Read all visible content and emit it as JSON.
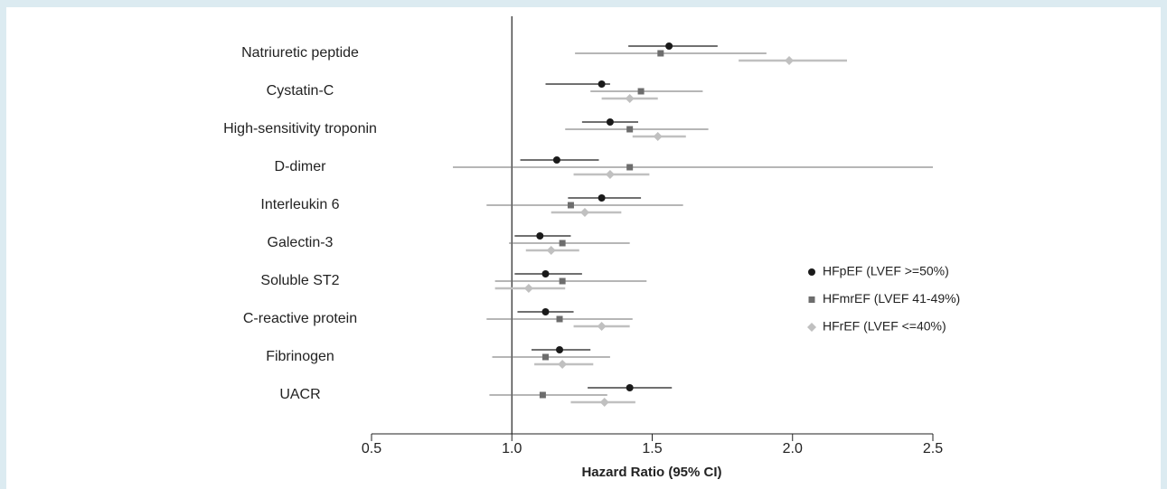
{
  "chart_data": {
    "type": "forest",
    "xlabel": "Hazard Ratio (95% CI)",
    "categories": [
      "Natriuretic peptide",
      "Cystatin-C",
      "High-sensitivity troponin",
      "D-dimer",
      "Interleukin 6",
      "Galectin-3",
      "Soluble ST2",
      "C-reactive protein",
      "Fibrinogen",
      "UACR"
    ],
    "series": [
      {
        "name": "HFpEF (LVEF >=50%)",
        "color": "#1a1a1a",
        "marker": "circle",
        "values": [
          1.56,
          1.32,
          1.35,
          1.16,
          1.32,
          1.1,
          1.12,
          1.12,
          1.17,
          1.42
        ],
        "lower": [
          1.415,
          1.12,
          1.25,
          1.03,
          1.2,
          1.01,
          1.01,
          1.02,
          1.07,
          1.27
        ],
        "upper": [
          1.733,
          1.35,
          1.45,
          1.31,
          1.46,
          1.21,
          1.25,
          1.22,
          1.28,
          1.57
        ]
      },
      {
        "name": "HFmrEF (LVEF 41-49%)",
        "color": "#6d6d6d",
        "marker": "square",
        "values": [
          1.53,
          1.46,
          1.42,
          1.42,
          1.21,
          1.18,
          1.18,
          1.17,
          1.12,
          1.11
        ],
        "lower": [
          1.225,
          1.28,
          1.19,
          0.79,
          0.91,
          0.99,
          0.94,
          0.91,
          0.93,
          0.92
        ],
        "upper": [
          1.907,
          1.68,
          1.7,
          2.5,
          1.61,
          1.42,
          1.48,
          1.43,
          1.35,
          1.34
        ]
      },
      {
        "name": "HFrEF (LVEF <=40%)",
        "color": "#c0c0c0",
        "marker": "diamond",
        "values": [
          1.988,
          1.42,
          1.52,
          1.35,
          1.26,
          1.14,
          1.06,
          1.32,
          1.18,
          1.33
        ],
        "lower": [
          1.808,
          1.32,
          1.43,
          1.22,
          1.14,
          1.05,
          0.94,
          1.22,
          1.08,
          1.21
        ],
        "upper": [
          2.194,
          1.52,
          1.62,
          1.49,
          1.39,
          1.24,
          1.19,
          1.42,
          1.29,
          1.44
        ]
      }
    ],
    "xlim": [
      0.5,
      2.5
    ],
    "xticks": [
      0.5,
      {
        "value": 1,
        "label": "1.0"
      },
      1.5,
      {
        "value": 2,
        "label": "2.0"
      },
      2.5
    ],
    "reference_line": 1,
    "legend": "right"
  }
}
